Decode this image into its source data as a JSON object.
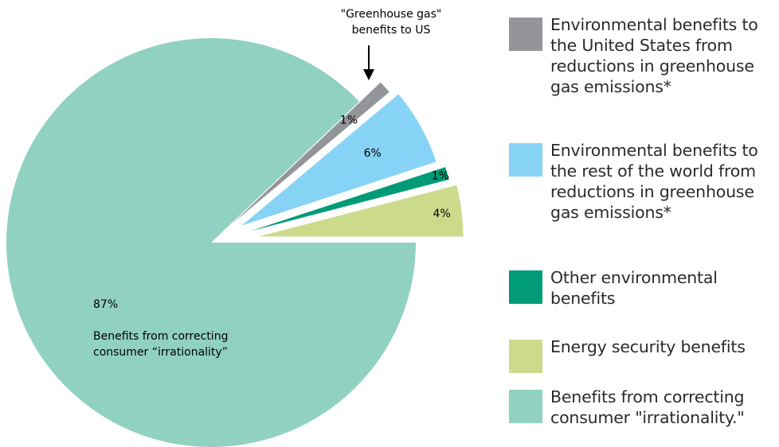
{
  "chart_data": {
    "type": "pie",
    "title": "",
    "annotation": "\"Greenhouse gas\"\nbenefits to US",
    "slices": [
      {
        "label": "1%",
        "value": 1,
        "color": "#939598",
        "legend": "Environmental benefits to\nthe United States from\nreductions in greenhouse\ngas emissions*"
      },
      {
        "label": "6%",
        "value": 6,
        "color": "#87d3f6",
        "legend": "Environmental benefits to\nthe rest of the world from\nreductions in greenhouse\ngas emissions*"
      },
      {
        "label": "1%",
        "value": 1,
        "color": "#009b77",
        "legend": "Other environmental\nbenefits"
      },
      {
        "label": "4%",
        "value": 4,
        "color": "#ccdb8b",
        "legend": "Energy security benefits"
      },
      {
        "label": "87%",
        "value": 87,
        "color": "#91d1c1",
        "legend": "Benefits from correcting\nconsumer \"irrationality.\"",
        "callout": "Benefits from correcting\nconsumer “irrationality”"
      }
    ],
    "legend_position": "right"
  }
}
